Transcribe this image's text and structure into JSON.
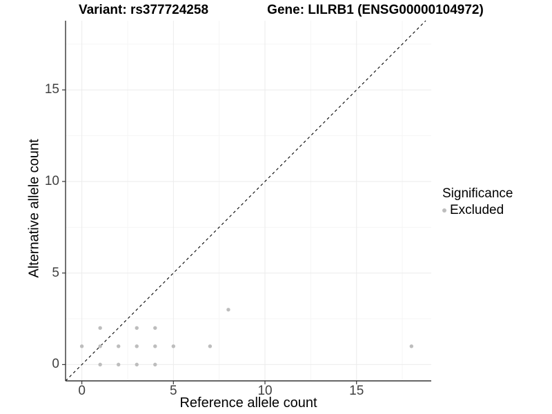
{
  "titles": {
    "left": "Variant: rs377724258",
    "right": "Gene: LILRB1 (ENSG00000104972)"
  },
  "legend": {
    "title": "Significance",
    "entries": [
      {
        "label": "Excluded",
        "color": "#bdbdbd"
      }
    ]
  },
  "chart_data": {
    "type": "scatter",
    "title": "Variant: rs377724258 — Gene: LILRB1 (ENSG00000104972)",
    "xlabel": "Reference allele count",
    "ylabel": "Alternative allele count",
    "xlim": [
      -0.89,
      19.08
    ],
    "ylim": [
      -0.89,
      18.78
    ],
    "x_ticks": [
      0,
      5,
      10,
      15
    ],
    "y_ticks": [
      0,
      5,
      10,
      15
    ],
    "x_minor_gridlines": [
      2.5,
      7.5,
      12.5,
      17.5
    ],
    "y_minor_gridlines": [
      2.5,
      7.5,
      12.5,
      17.5
    ],
    "grid": "major and minor, on",
    "legend_position": "right",
    "series": [
      {
        "name": "Excluded",
        "color": "#bdbdbd",
        "points": [
          [
            0,
            1
          ],
          [
            1,
            0
          ],
          [
            1,
            1
          ],
          [
            1,
            2
          ],
          [
            2,
            0
          ],
          [
            2,
            1
          ],
          [
            3,
            0
          ],
          [
            3,
            1
          ],
          [
            3,
            2
          ],
          [
            4,
            0
          ],
          [
            4,
            1
          ],
          [
            4,
            2
          ],
          [
            5,
            1
          ],
          [
            7,
            1
          ],
          [
            8,
            3
          ],
          [
            18,
            1
          ]
        ]
      }
    ],
    "reference_line": {
      "type": "identity y=x",
      "style": "dashed",
      "color": "#000000"
    }
  },
  "colors": {
    "background": "#ffffff",
    "point": "#bdbdbd",
    "axis_line": "#333333",
    "tick_label": "#404040",
    "grid_major": "#ebebeb",
    "grid_minor": "#f5f5f5"
  }
}
